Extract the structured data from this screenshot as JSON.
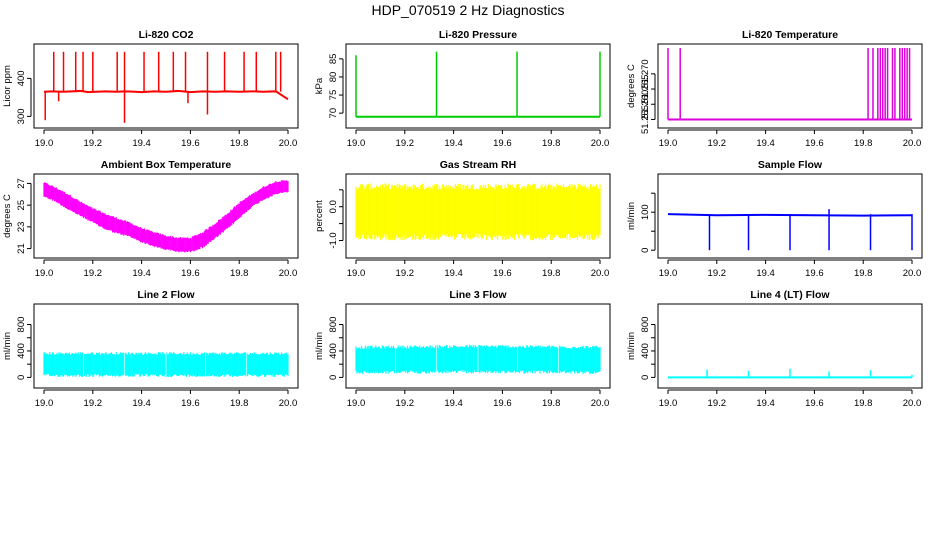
{
  "figure": {
    "title": "HDP_070519  2 Hz Diagnostics"
  },
  "chart_data": [
    {
      "id": "co2",
      "type": "line",
      "title": "Li-820 CO2",
      "ylabel": "Licor ppm",
      "color": "#ff0000",
      "xlim": [
        19.0,
        20.0
      ],
      "ylim": [
        280,
        480
      ],
      "xticks": [
        19.0,
        19.2,
        19.4,
        19.6,
        19.8,
        20.0
      ],
      "xtick_labels": [
        "19.0",
        "19.2",
        "19.4",
        "19.6",
        "19.8",
        "20.0"
      ],
      "yticks": [
        300,
        400
      ],
      "ytick_labels": [
        "300",
        "400"
      ],
      "series": [
        {
          "name": "CO2",
          "x": [
            19.0,
            19.03,
            19.08,
            19.15,
            19.18,
            19.25,
            19.3,
            19.33,
            19.4,
            19.45,
            19.5,
            19.55,
            19.6,
            19.65,
            19.7,
            19.75,
            19.8,
            19.85,
            19.9,
            19.95,
            20.0
          ],
          "y": [
            365,
            366,
            365,
            367,
            364,
            366,
            365,
            366,
            364,
            366,
            365,
            367,
            364,
            366,
            365,
            366,
            365,
            366,
            365,
            366,
            345
          ]
        }
      ],
      "spikes": [
        {
          "x": 19.04,
          "y": 470
        },
        {
          "x": 19.08,
          "y": 470
        },
        {
          "x": 19.13,
          "y": 470
        },
        {
          "x": 19.16,
          "y": 470
        },
        {
          "x": 19.2,
          "y": 470
        },
        {
          "x": 19.3,
          "y": 470
        },
        {
          "x": 19.33,
          "y": 470
        },
        {
          "x": 19.41,
          "y": 470
        },
        {
          "x": 19.47,
          "y": 470
        },
        {
          "x": 19.53,
          "y": 470
        },
        {
          "x": 19.58,
          "y": 470
        },
        {
          "x": 19.67,
          "y": 470
        },
        {
          "x": 19.74,
          "y": 470
        },
        {
          "x": 19.82,
          "y": 470
        },
        {
          "x": 19.87,
          "y": 470
        },
        {
          "x": 19.95,
          "y": 470
        },
        {
          "x": 19.97,
          "y": 470
        }
      ],
      "dips": [
        {
          "x": 19.005,
          "y": 290
        },
        {
          "x": 19.33,
          "y": 283
        },
        {
          "x": 19.67,
          "y": 305
        },
        {
          "x": 19.59,
          "y": 335
        },
        {
          "x": 19.06,
          "y": 340
        }
      ]
    },
    {
      "id": "pressure",
      "type": "line",
      "title": "Li-820 Pressure",
      "ylabel": "kPa",
      "color": "#00cc00",
      "xlim": [
        19.0,
        20.0
      ],
      "ylim": [
        67,
        88
      ],
      "xticks": [
        19.0,
        19.2,
        19.4,
        19.6,
        19.8,
        20.0
      ],
      "xtick_labels": [
        "19.0",
        "19.2",
        "19.4",
        "19.6",
        "19.8",
        "20.0"
      ],
      "yticks": [
        70,
        75,
        80,
        85
      ],
      "ytick_labels": [
        "70",
        "75",
        "80",
        "85"
      ],
      "series": [
        {
          "name": "Pressure",
          "x": [
            19.0,
            19.2,
            19.4,
            19.6,
            19.8,
            20.0
          ],
          "y": [
            69,
            69,
            69,
            69,
            69,
            69
          ]
        }
      ],
      "spikes": [
        {
          "x": 19.0,
          "y": 86
        },
        {
          "x": 19.33,
          "y": 87
        },
        {
          "x": 19.66,
          "y": 87
        },
        {
          "x": 20.0,
          "y": 87
        }
      ],
      "dips": []
    },
    {
      "id": "licor-temp",
      "type": "line",
      "title": "Li-820 Temperature",
      "ylabel": "degrees C",
      "color": "#dd00dd",
      "xlim": [
        19.0,
        20.0
      ],
      "ylim": [
        51.2535,
        51.2785
      ],
      "xticks": [
        19.0,
        19.2,
        19.4,
        19.6,
        19.8,
        20.0
      ],
      "xtick_labels": [
        "19.0",
        "19.2",
        "19.4",
        "19.6",
        "19.8",
        "20.0"
      ],
      "yticks": [
        51.255,
        51.26,
        51.265,
        51.27
      ],
      "ytick_labels": [
        "51.255",
        "51.260",
        "51.265",
        "51.270"
      ],
      "series": [
        {
          "name": "Temperature",
          "x": [
            19.0,
            20.0
          ],
          "y": [
            51.255,
            51.255
          ]
        }
      ],
      "spikes": [
        {
          "x": 19.0,
          "y": 51.2785
        },
        {
          "x": 19.05,
          "y": 51.2785
        },
        {
          "x": 19.82,
          "y": 51.2785
        },
        {
          "x": 19.84,
          "y": 51.2785
        },
        {
          "x": 19.86,
          "y": 51.2785
        },
        {
          "x": 19.87,
          "y": 51.2785
        },
        {
          "x": 19.88,
          "y": 51.2785
        },
        {
          "x": 19.89,
          "y": 51.2785
        },
        {
          "x": 19.9,
          "y": 51.2785
        },
        {
          "x": 19.92,
          "y": 51.2785
        },
        {
          "x": 19.93,
          "y": 51.2785
        },
        {
          "x": 19.95,
          "y": 51.2785
        },
        {
          "x": 19.96,
          "y": 51.2785
        },
        {
          "x": 19.97,
          "y": 51.2785
        },
        {
          "x": 19.98,
          "y": 51.2785
        },
        {
          "x": 19.99,
          "y": 51.2785
        }
      ],
      "dips": []
    },
    {
      "id": "ambient-temp",
      "type": "area",
      "title": "Ambient Box Temperature",
      "ylabel": "degrees C",
      "color": "#ff00ff",
      "xlim": [
        19.0,
        20.0
      ],
      "ylim": [
        20.5,
        27.5
      ],
      "xticks": [
        19.0,
        19.2,
        19.4,
        19.6,
        19.8,
        20.0
      ],
      "xtick_labels": [
        "19.0",
        "19.2",
        "19.4",
        "19.6",
        "19.8",
        "20.0"
      ],
      "yticks": [
        21,
        23,
        25,
        27
      ],
      "ytick_labels": [
        "21",
        "23",
        "25",
        "27"
      ],
      "series": [
        {
          "name": "Temperature",
          "x": [
            19.0,
            19.05,
            19.1,
            19.15,
            19.2,
            19.25,
            19.3,
            19.35,
            19.4,
            19.45,
            19.5,
            19.55,
            19.6,
            19.65,
            19.7,
            19.75,
            19.8,
            19.85,
            19.9,
            19.95,
            20.0
          ],
          "lower": [
            25.9,
            25.4,
            24.7,
            24.1,
            23.5,
            22.9,
            22.5,
            22.2,
            21.7,
            21.3,
            21.0,
            20.8,
            20.8,
            21.2,
            22.0,
            22.9,
            23.9,
            24.9,
            25.6,
            26.1,
            26.3
          ],
          "upper": [
            27.0,
            26.5,
            25.9,
            25.2,
            24.6,
            24.1,
            23.7,
            23.3,
            22.8,
            22.4,
            22.1,
            21.9,
            21.9,
            22.4,
            23.2,
            24.1,
            25.1,
            25.9,
            26.6,
            27.1,
            27.2
          ]
        }
      ]
    },
    {
      "id": "rh",
      "type": "area",
      "title": "Gas Stream RH",
      "ylabel": "percent",
      "color": "#ffff00",
      "xlim": [
        19.0,
        20.0
      ],
      "ylim": [
        -1.4,
        0.85
      ],
      "xticks": [
        19.0,
        19.2,
        19.4,
        19.6,
        19.8,
        20.0
      ],
      "xtick_labels": [
        "19.0",
        "19.2",
        "19.4",
        "19.6",
        "19.8",
        "20.0"
      ],
      "yticks": [
        -1.0,
        -0.5,
        0.0,
        0.5
      ],
      "ytick_labels": [
        "-1.0",
        "",
        "0.0",
        ""
      ],
      "series": [
        {
          "name": "RH",
          "x": [
            19.0,
            20.0
          ],
          "lower": [
            -0.8,
            -0.8
          ],
          "upper": [
            0.5,
            0.5
          ]
        }
      ]
    },
    {
      "id": "sample-flow",
      "type": "line",
      "title": "Sample Flow",
      "ylabel": "ml/min",
      "color": "#0000ff",
      "xlim": [
        19.0,
        20.0
      ],
      "ylim": [
        -10,
        190
      ],
      "xticks": [
        19.0,
        19.2,
        19.4,
        19.6,
        19.8,
        20.0
      ],
      "xtick_labels": [
        "19.0",
        "19.2",
        "19.4",
        "19.6",
        "19.8",
        "20.0"
      ],
      "yticks": [
        0,
        50,
        100,
        150
      ],
      "ytick_labels": [
        "0",
        "",
        "100",
        ""
      ],
      "series": [
        {
          "name": "Flow",
          "x": [
            19.0,
            19.2,
            19.4,
            19.6,
            19.8,
            20.0
          ],
          "y": [
            95,
            92,
            93,
            92,
            91,
            92
          ]
        }
      ],
      "spikes": [
        {
          "x": 19.66,
          "y": 108
        }
      ],
      "dips": [
        {
          "x": 19.17,
          "y": 0
        },
        {
          "x": 19.33,
          "y": 0
        },
        {
          "x": 19.5,
          "y": 0
        },
        {
          "x": 19.66,
          "y": 0
        },
        {
          "x": 19.83,
          "y": 0
        },
        {
          "x": 20.0,
          "y": 0
        }
      ]
    },
    {
      "id": "line2-flow",
      "type": "area",
      "title": "Line 2 Flow",
      "ylabel": "ml/min",
      "color": "#00ffff",
      "xlim": [
        19.0,
        20.0
      ],
      "ylim": [
        -100,
        1050
      ],
      "xticks": [
        19.0,
        19.2,
        19.4,
        19.6,
        19.8,
        20.0
      ],
      "xtick_labels": [
        "19.0",
        "19.2",
        "19.4",
        "19.6",
        "19.8",
        "20.0"
      ],
      "yticks": [
        0,
        200,
        400,
        600,
        800
      ],
      "ytick_labels": [
        "0",
        "",
        "400",
        "",
        "800"
      ],
      "series": [
        {
          "name": "Flow",
          "x": [
            19.0,
            20.0
          ],
          "lower": [
            50,
            50
          ],
          "upper": [
            340,
            340
          ]
        }
      ],
      "gaps": [
        19.16,
        19.33,
        19.5,
        19.66,
        19.83
      ]
    },
    {
      "id": "line3-flow",
      "type": "area",
      "title": "Line 3 Flow",
      "ylabel": "ml/min",
      "color": "#00ffff",
      "xlim": [
        19.0,
        20.0
      ],
      "ylim": [
        -100,
        1050
      ],
      "xticks": [
        19.0,
        19.2,
        19.4,
        19.6,
        19.8,
        20.0
      ],
      "xtick_labels": [
        "19.0",
        "19.2",
        "19.4",
        "19.6",
        "19.8",
        "20.0"
      ],
      "yticks": [
        0,
        200,
        400,
        600,
        800
      ],
      "ytick_labels": [
        "0",
        "",
        "400",
        "",
        "800"
      ],
      "series": [
        {
          "name": "Flow",
          "x": [
            19.0,
            19.5,
            20.0
          ],
          "lower": [
            100,
            110,
            100
          ],
          "upper": [
            430,
            445,
            430
          ]
        }
      ],
      "gaps": [
        19.16,
        19.33,
        19.5,
        19.66,
        19.83
      ]
    },
    {
      "id": "line4-flow",
      "type": "line",
      "title": "Line 4 (LT) Flow",
      "ylabel": "ml/min",
      "color": "#00ffff",
      "xlim": [
        19.0,
        20.0
      ],
      "ylim": [
        -100,
        1050
      ],
      "xticks": [
        19.0,
        19.2,
        19.4,
        19.6,
        19.8,
        20.0
      ],
      "xtick_labels": [
        "19.0",
        "19.2",
        "19.4",
        "19.6",
        "19.8",
        "20.0"
      ],
      "yticks": [
        0,
        200,
        400,
        600,
        800
      ],
      "ytick_labels": [
        "0",
        "",
        "400",
        "",
        "800"
      ],
      "series": [
        {
          "name": "Flow",
          "x": [
            19.0,
            20.0
          ],
          "y": [
            0,
            0
          ]
        }
      ],
      "spikes": [
        {
          "x": 19.16,
          "y": 120
        },
        {
          "x": 19.33,
          "y": 100
        },
        {
          "x": 19.5,
          "y": 130
        },
        {
          "x": 19.66,
          "y": 90
        },
        {
          "x": 19.83,
          "y": 110
        },
        {
          "x": 20.0,
          "y": 40
        }
      ],
      "dips": []
    }
  ]
}
